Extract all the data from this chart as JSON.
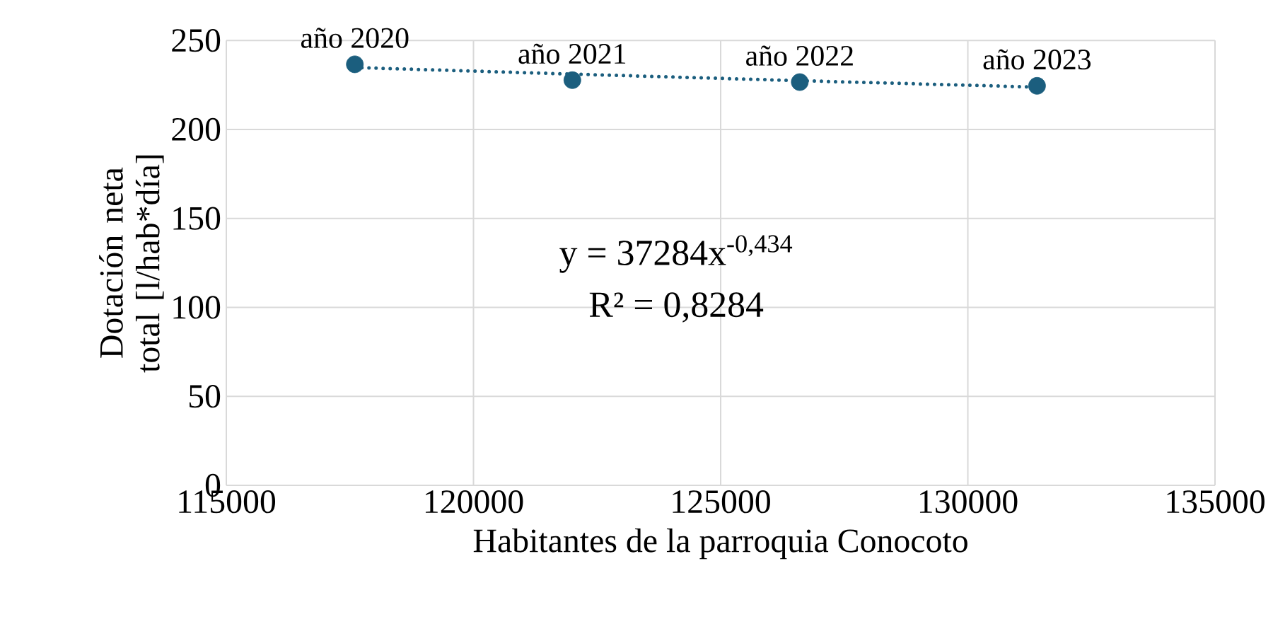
{
  "chart_data": {
    "type": "scatter",
    "xlabel": "Habitantes de la parroquia Conocoto",
    "ylabel": "Dotación neta total [l/hab*día]",
    "xlim": [
      115000,
      135000
    ],
    "xticks": [
      115000,
      120000,
      125000,
      130000,
      135000
    ],
    "ylim": [
      0,
      250
    ],
    "yticks": [
      0,
      50,
      100,
      150,
      200,
      250
    ],
    "grid": true,
    "series": [
      {
        "marker": "circle",
        "color": "#1b5e7e",
        "x": [
          117600,
          122000,
          126600,
          131400
        ],
        "values": [
          236.6,
          227.7,
          226.6,
          224.5
        ]
      },
      {
        "type": "line",
        "marker": "none",
        "line_style": "dotted",
        "color": "#1b5e7e",
        "x": [
          117600,
          122000,
          126600,
          131400
        ],
        "values": [
          234.8,
          231.1,
          227.4,
          223.8
        ]
      }
    ],
    "annotations": [
      {
        "text": "año 2020",
        "x": 117600,
        "y": 236.6
      },
      {
        "text": "año 2021",
        "x": 122000,
        "y": 227.7
      },
      {
        "text": "año 2022",
        "x": 126600,
        "y": 226.6
      },
      {
        "text": "año 2023",
        "x": 131400,
        "y": 224.5
      },
      "y = 37284x$^{-0,434}$",
      "R² = 0,8284"
    ]
  }
}
